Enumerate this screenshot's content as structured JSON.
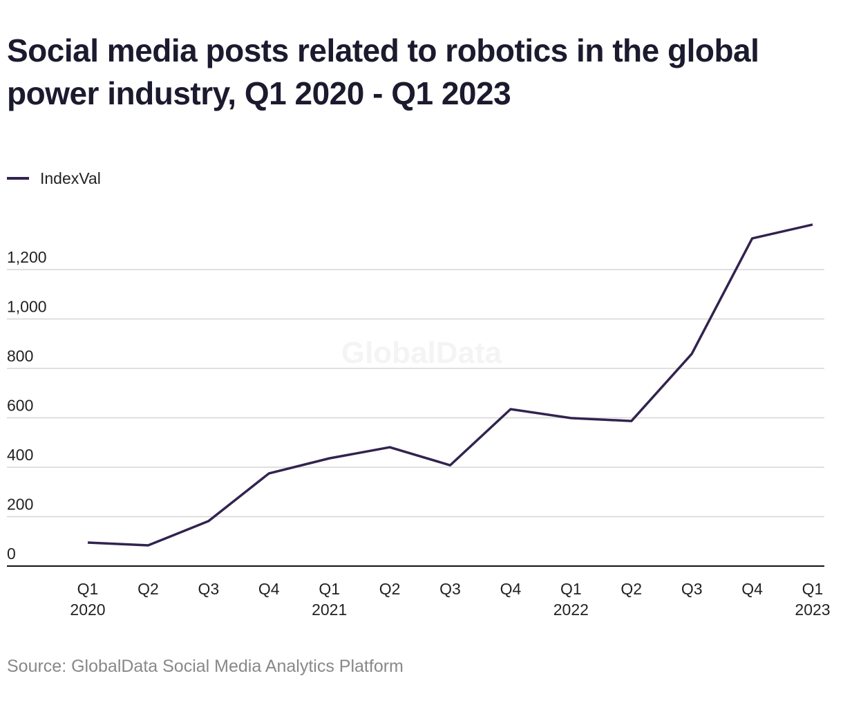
{
  "chart_data": {
    "type": "line",
    "title": "Social media posts related to robotics in the global power industry, Q1 2020 - Q1 2023",
    "categories": [
      "Q1 2020",
      "Q2",
      "Q3",
      "Q4",
      "Q1 2021",
      "Q2",
      "Q3",
      "Q4",
      "Q1 2022",
      "Q2",
      "Q3",
      "Q4",
      "Q1 2023"
    ],
    "series": [
      {
        "name": "IndexVal",
        "color": "#32234f",
        "values": [
          95,
          84,
          182,
          375,
          436,
          481,
          408,
          635,
          599,
          587,
          859,
          1326,
          1382
        ]
      }
    ],
    "ylim": [
      0,
      1400
    ],
    "yticks": [
      0,
      200,
      400,
      600,
      800,
      {
        "value": 1000,
        "label": "1,000"
      },
      {
        "value": 1200,
        "label": "1,200"
      }
    ],
    "grid": true,
    "watermark": "GlobalData",
    "source": "Source: GlobalData Social Media Analytics Platform"
  }
}
